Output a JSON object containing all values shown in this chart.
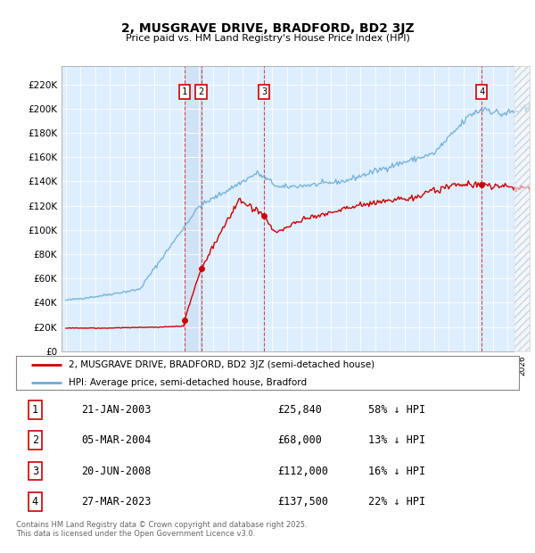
{
  "title": "2, MUSGRAVE DRIVE, BRADFORD, BD2 3JZ",
  "subtitle": "Price paid vs. HM Land Registry's House Price Index (HPI)",
  "ylim": [
    0,
    230000
  ],
  "yticks": [
    0,
    20000,
    40000,
    60000,
    80000,
    100000,
    120000,
    140000,
    160000,
    180000,
    200000,
    220000
  ],
  "plot_bg": "#ddeeff",
  "hpi_color": "#6baed6",
  "price_color": "#cc0000",
  "transactions": [
    {
      "label": "1",
      "date": "2003-01-21",
      "price": 25840,
      "x_approx": 2003.05
    },
    {
      "label": "2",
      "date": "2004-03-05",
      "price": 68000,
      "x_approx": 2004.18
    },
    {
      "label": "3",
      "date": "2008-06-20",
      "price": 112000,
      "x_approx": 2008.47
    },
    {
      "label": "4",
      "date": "2023-03-27",
      "price": 137500,
      "x_approx": 2023.24
    }
  ],
  "table_rows": [
    {
      "num": "1",
      "date": "21-JAN-2003",
      "price": "£25,840",
      "note": "58% ↓ HPI"
    },
    {
      "num": "2",
      "date": "05-MAR-2004",
      "price": "£68,000",
      "note": "13% ↓ HPI"
    },
    {
      "num": "3",
      "date": "20-JUN-2008",
      "price": "£112,000",
      "note": "16% ↓ HPI"
    },
    {
      "num": "4",
      "date": "27-MAR-2023",
      "price": "£137,500",
      "note": "22% ↓ HPI"
    }
  ],
  "legend_entries": [
    "2, MUSGRAVE DRIVE, BRADFORD, BD2 3JZ (semi-detached house)",
    "HPI: Average price, semi-detached house, Bradford"
  ],
  "footer": "Contains HM Land Registry data © Crown copyright and database right 2025.\nThis data is licensed under the Open Government Licence v3.0.",
  "xmin": 1995.0,
  "xmax": 2026.5
}
